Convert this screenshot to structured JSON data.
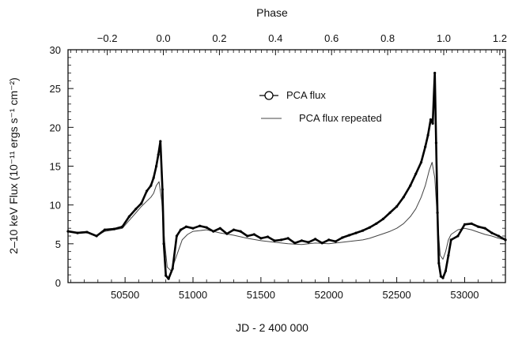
{
  "chart_data": {
    "type": "line",
    "title": "",
    "xlabel": "JD - 2 400 000",
    "ylabel": "2–10 keV Flux (10⁻¹¹ ergs  s⁻¹ cm⁻²)",
    "x2label": "Phase",
    "xlim": [
      50080,
      53300
    ],
    "ylim": [
      0,
      30
    ],
    "x2lim": [
      -0.34,
      1.22
    ],
    "xticks": [
      50500,
      51000,
      51500,
      52000,
      52500,
      53000
    ],
    "yticks": [
      0,
      5,
      10,
      15,
      20,
      25,
      30
    ],
    "x2ticks": [
      -0.2,
      0.0,
      0.2,
      0.4,
      0.6,
      0.8,
      1.0,
      1.2
    ],
    "xtick_labels": [
      "50500",
      "51000",
      "51500",
      "52000",
      "52500",
      "53000"
    ],
    "ytick_labels": [
      "0",
      "5",
      "10",
      "15",
      "20",
      "25",
      "30"
    ],
    "x2tick_labels": [
      "−0.2",
      "0.0",
      "0.2",
      "0.4",
      "0.6",
      "0.8",
      "1.0",
      "1.2"
    ],
    "grid": false,
    "legend_position": "top-center",
    "series": [
      {
        "name": "PCA flux",
        "style": "thick line with circle markers",
        "color": "#000000",
        "x": [
          50080,
          50150,
          50220,
          50290,
          50350,
          50420,
          50480,
          50530,
          50580,
          50620,
          50660,
          50690,
          50710,
          50730,
          50745,
          50760,
          50775,
          50785,
          50800,
          50820,
          50850,
          50880,
          50910,
          50950,
          51000,
          51050,
          51100,
          51150,
          51200,
          51250,
          51300,
          51350,
          51400,
          51450,
          51500,
          51550,
          51600,
          51650,
          51700,
          51750,
          51800,
          51850,
          51900,
          51950,
          52000,
          52050,
          52100,
          52150,
          52200,
          52250,
          52300,
          52350,
          52400,
          52450,
          52500,
          52550,
          52600,
          52640,
          52680,
          52710,
          52730,
          52750,
          52765,
          52780,
          52790,
          52800,
          52810,
          52825,
          52840,
          52860,
          52880,
          52900,
          52950,
          53000,
          53050,
          53100,
          53150,
          53200,
          53250,
          53300
        ],
        "y": [
          6.6,
          6.4,
          6.5,
          6.0,
          6.8,
          6.9,
          7.2,
          8.5,
          9.5,
          10.2,
          11.8,
          12.5,
          13.5,
          15.0,
          16.5,
          18.2,
          12.0,
          5.0,
          0.9,
          0.5,
          1.8,
          6.0,
          6.8,
          7.2,
          7.0,
          7.3,
          7.1,
          6.6,
          7.0,
          6.3,
          6.8,
          6.6,
          6.0,
          6.2,
          5.7,
          5.9,
          5.4,
          5.5,
          5.7,
          5.1,
          5.4,
          5.2,
          5.6,
          5.1,
          5.5,
          5.3,
          5.8,
          6.1,
          6.4,
          6.7,
          7.1,
          7.6,
          8.2,
          9.0,
          9.8,
          11.0,
          12.5,
          14.0,
          15.5,
          17.5,
          19.0,
          21.0,
          20.5,
          27.0,
          18.0,
          9.0,
          2.5,
          0.8,
          0.6,
          1.5,
          3.5,
          5.5,
          6.0,
          7.5,
          7.6,
          7.2,
          7.0,
          6.4,
          6.0,
          5.5
        ]
      },
      {
        "name": "PCA flux repeated",
        "style": "thin line",
        "color": "#444444",
        "x": [
          50080,
          50150,
          50220,
          50290,
          50350,
          50420,
          50480,
          50530,
          50580,
          50620,
          50660,
          50690,
          50710,
          50730,
          50750,
          50770,
          50790,
          50810,
          50840,
          50880,
          50920,
          50960,
          51000,
          51100,
          51200,
          51300,
          51400,
          51500,
          51600,
          51700,
          51800,
          51900,
          52000,
          52100,
          52200,
          52250,
          52300,
          52350,
          52400,
          52450,
          52500,
          52550,
          52600,
          52640,
          52680,
          52710,
          52740,
          52760,
          52780,
          52800,
          52820,
          52840,
          52860,
          52880,
          52900,
          52950,
          53000,
          53050,
          53100,
          53150,
          53200,
          53250,
          53300
        ],
        "y": [
          6.7,
          6.5,
          6.6,
          6.0,
          6.6,
          6.8,
          7.0,
          8.0,
          9.0,
          9.8,
          10.5,
          11.0,
          11.5,
          12.5,
          13.0,
          10.5,
          5.5,
          2.0,
          1.5,
          3.5,
          5.5,
          6.2,
          6.6,
          6.8,
          6.4,
          6.1,
          5.7,
          5.4,
          5.2,
          5.0,
          4.9,
          5.1,
          5.0,
          5.2,
          5.4,
          5.5,
          5.7,
          6.0,
          6.3,
          6.6,
          7.0,
          7.6,
          8.5,
          9.5,
          11.0,
          12.5,
          14.5,
          15.5,
          13.5,
          8.0,
          3.5,
          3.0,
          4.0,
          5.5,
          6.2,
          6.8,
          7.0,
          6.8,
          6.5,
          6.2,
          6.0,
          5.7,
          5.5
        ]
      }
    ]
  }
}
